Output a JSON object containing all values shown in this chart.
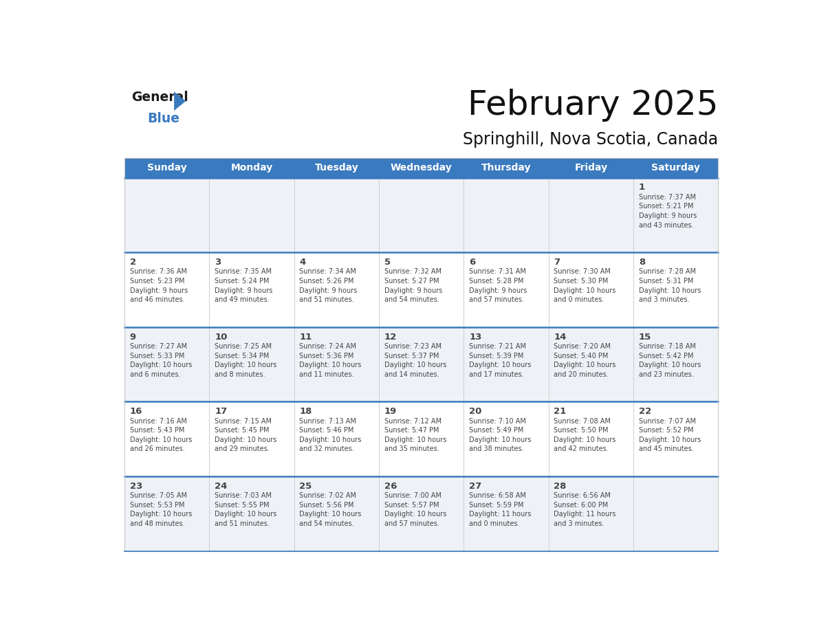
{
  "title": "February 2025",
  "subtitle": "Springhill, Nova Scotia, Canada",
  "header_bg": "#3a7abf",
  "header_text_color": "#ffffff",
  "row_bg_light": "#eef2f7",
  "row_bg_white": "#ffffff",
  "divider_color": "#3a7abf",
  "text_color": "#444444",
  "days_of_week": [
    "Sunday",
    "Monday",
    "Tuesday",
    "Wednesday",
    "Thursday",
    "Friday",
    "Saturday"
  ],
  "weeks": [
    [
      {
        "day": "",
        "sunrise": "",
        "sunset": "",
        "daylight": ""
      },
      {
        "day": "",
        "sunrise": "",
        "sunset": "",
        "daylight": ""
      },
      {
        "day": "",
        "sunrise": "",
        "sunset": "",
        "daylight": ""
      },
      {
        "day": "",
        "sunrise": "",
        "sunset": "",
        "daylight": ""
      },
      {
        "day": "",
        "sunrise": "",
        "sunset": "",
        "daylight": ""
      },
      {
        "day": "",
        "sunrise": "",
        "sunset": "",
        "daylight": ""
      },
      {
        "day": "1",
        "sunrise": "7:37 AM",
        "sunset": "5:21 PM",
        "daylight": "9 hours\nand 43 minutes."
      }
    ],
    [
      {
        "day": "2",
        "sunrise": "7:36 AM",
        "sunset": "5:23 PM",
        "daylight": "9 hours\nand 46 minutes."
      },
      {
        "day": "3",
        "sunrise": "7:35 AM",
        "sunset": "5:24 PM",
        "daylight": "9 hours\nand 49 minutes."
      },
      {
        "day": "4",
        "sunrise": "7:34 AM",
        "sunset": "5:26 PM",
        "daylight": "9 hours\nand 51 minutes."
      },
      {
        "day": "5",
        "sunrise": "7:32 AM",
        "sunset": "5:27 PM",
        "daylight": "9 hours\nand 54 minutes."
      },
      {
        "day": "6",
        "sunrise": "7:31 AM",
        "sunset": "5:28 PM",
        "daylight": "9 hours\nand 57 minutes."
      },
      {
        "day": "7",
        "sunrise": "7:30 AM",
        "sunset": "5:30 PM",
        "daylight": "10 hours\nand 0 minutes."
      },
      {
        "day": "8",
        "sunrise": "7:28 AM",
        "sunset": "5:31 PM",
        "daylight": "10 hours\nand 3 minutes."
      }
    ],
    [
      {
        "day": "9",
        "sunrise": "7:27 AM",
        "sunset": "5:33 PM",
        "daylight": "10 hours\nand 6 minutes."
      },
      {
        "day": "10",
        "sunrise": "7:25 AM",
        "sunset": "5:34 PM",
        "daylight": "10 hours\nand 8 minutes."
      },
      {
        "day": "11",
        "sunrise": "7:24 AM",
        "sunset": "5:36 PM",
        "daylight": "10 hours\nand 11 minutes."
      },
      {
        "day": "12",
        "sunrise": "7:23 AM",
        "sunset": "5:37 PM",
        "daylight": "10 hours\nand 14 minutes."
      },
      {
        "day": "13",
        "sunrise": "7:21 AM",
        "sunset": "5:39 PM",
        "daylight": "10 hours\nand 17 minutes."
      },
      {
        "day": "14",
        "sunrise": "7:20 AM",
        "sunset": "5:40 PM",
        "daylight": "10 hours\nand 20 minutes."
      },
      {
        "day": "15",
        "sunrise": "7:18 AM",
        "sunset": "5:42 PM",
        "daylight": "10 hours\nand 23 minutes."
      }
    ],
    [
      {
        "day": "16",
        "sunrise": "7:16 AM",
        "sunset": "5:43 PM",
        "daylight": "10 hours\nand 26 minutes."
      },
      {
        "day": "17",
        "sunrise": "7:15 AM",
        "sunset": "5:45 PM",
        "daylight": "10 hours\nand 29 minutes."
      },
      {
        "day": "18",
        "sunrise": "7:13 AM",
        "sunset": "5:46 PM",
        "daylight": "10 hours\nand 32 minutes."
      },
      {
        "day": "19",
        "sunrise": "7:12 AM",
        "sunset": "5:47 PM",
        "daylight": "10 hours\nand 35 minutes."
      },
      {
        "day": "20",
        "sunrise": "7:10 AM",
        "sunset": "5:49 PM",
        "daylight": "10 hours\nand 38 minutes."
      },
      {
        "day": "21",
        "sunrise": "7:08 AM",
        "sunset": "5:50 PM",
        "daylight": "10 hours\nand 42 minutes."
      },
      {
        "day": "22",
        "sunrise": "7:07 AM",
        "sunset": "5:52 PM",
        "daylight": "10 hours\nand 45 minutes."
      }
    ],
    [
      {
        "day": "23",
        "sunrise": "7:05 AM",
        "sunset": "5:53 PM",
        "daylight": "10 hours\nand 48 minutes."
      },
      {
        "day": "24",
        "sunrise": "7:03 AM",
        "sunset": "5:55 PM",
        "daylight": "10 hours\nand 51 minutes."
      },
      {
        "day": "25",
        "sunrise": "7:02 AM",
        "sunset": "5:56 PM",
        "daylight": "10 hours\nand 54 minutes."
      },
      {
        "day": "26",
        "sunrise": "7:00 AM",
        "sunset": "5:57 PM",
        "daylight": "10 hours\nand 57 minutes."
      },
      {
        "day": "27",
        "sunrise": "6:58 AM",
        "sunset": "5:59 PM",
        "daylight": "11 hours\nand 0 minutes."
      },
      {
        "day": "28",
        "sunrise": "6:56 AM",
        "sunset": "6:00 PM",
        "daylight": "11 hours\nand 3 minutes."
      },
      {
        "day": "",
        "sunrise": "",
        "sunset": "",
        "daylight": ""
      }
    ]
  ]
}
